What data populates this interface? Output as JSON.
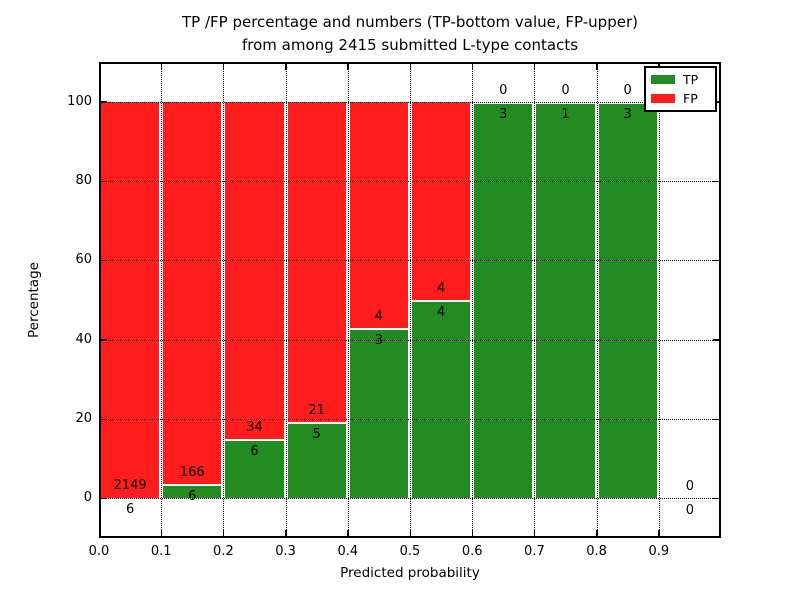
{
  "title": {
    "line1": "TP /FP percentage and numbers (TP-bottom value, FP-upper)",
    "line2": "from among 2415 submitted L-type contacts"
  },
  "colors": {
    "tp": "#228b22",
    "fp": "#ff1c1c",
    "grid": "#000000",
    "frame": "#000000",
    "background": "#ffffff"
  },
  "chart_data": {
    "type": "bar",
    "stacked": true,
    "normalized_to_percent": true,
    "title": "TP /FP percentage and numbers (TP-bottom value, FP-upper)\nfrom among 2415 submitted L-type contacts",
    "xlabel": "Predicted probability",
    "ylabel": "Percentage",
    "xlim": [
      0.0,
      1.0
    ],
    "ylim": [
      -10,
      110
    ],
    "xticks": [
      "0.0",
      "0.1",
      "0.2",
      "0.3",
      "0.4",
      "0.5",
      "0.6",
      "0.7",
      "0.8",
      "0.9"
    ],
    "yticks": [
      0,
      20,
      40,
      60,
      80,
      100
    ],
    "grid": true,
    "label_note": "FP count printed above the TP/FP boundary, TP count below it",
    "legend": {
      "position": "upper right",
      "entries": [
        {
          "label": "TP",
          "color": "#228b22"
        },
        {
          "label": "FP",
          "color": "#ff1c1c"
        }
      ]
    },
    "series": [
      {
        "name": "TP",
        "color": "#228b22",
        "counts": [
          6,
          6,
          6,
          5,
          3,
          4,
          3,
          1,
          3,
          0
        ]
      },
      {
        "name": "FP",
        "color": "#ff1c1c",
        "counts": [
          2149,
          166,
          34,
          21,
          4,
          4,
          0,
          0,
          0,
          0
        ]
      }
    ],
    "bins": [
      {
        "range": [
          0.0,
          0.1
        ],
        "tp": 6,
        "fp": 2149
      },
      {
        "range": [
          0.1,
          0.2
        ],
        "tp": 6,
        "fp": 166
      },
      {
        "range": [
          0.2,
          0.3
        ],
        "tp": 6,
        "fp": 34
      },
      {
        "range": [
          0.3,
          0.4
        ],
        "tp": 5,
        "fp": 21
      },
      {
        "range": [
          0.4,
          0.5
        ],
        "tp": 3,
        "fp": 4
      },
      {
        "range": [
          0.5,
          0.6
        ],
        "tp": 4,
        "fp": 4
      },
      {
        "range": [
          0.6,
          0.7
        ],
        "tp": 3,
        "fp": 0
      },
      {
        "range": [
          0.7,
          0.8
        ],
        "tp": 1,
        "fp": 0
      },
      {
        "range": [
          0.8,
          0.9
        ],
        "tp": 3,
        "fp": 0
      },
      {
        "range": [
          0.9,
          1.0
        ],
        "tp": 0,
        "fp": 0
      }
    ]
  }
}
